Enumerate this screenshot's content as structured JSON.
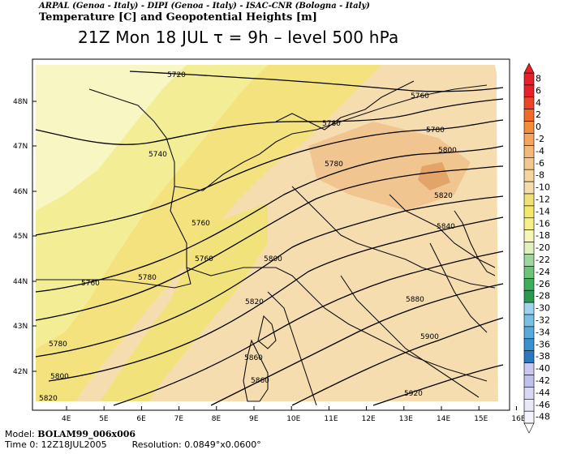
{
  "header": {
    "credits": "ARPAL (Genoa - Italy)  -  DIPI (Genoa - Italy)  -  ISAC-CNR (Bologna - Italy)",
    "title": "Temperature [C] and Geopotential Heights [m]",
    "subtitle": "21Z Mon 18 JUL   τ = 9h   –   level 500 hPa"
  },
  "footer": {
    "model_label": "Model:",
    "model_value": "BOLAM99_006x006",
    "time_label": "Time 0:",
    "time_value": "12Z18JUL2005",
    "resolution_label": "Resolution:",
    "resolution_value": "0.0849°x0.0600°"
  },
  "axes": {
    "lat_labels": [
      "48N",
      "47N",
      "46N",
      "45N",
      "44N",
      "43N",
      "42N"
    ],
    "lon_labels": [
      "4E",
      "5E",
      "6E",
      "7E",
      "8E",
      "9E",
      "10E",
      "11E",
      "12E",
      "13E",
      "14E",
      "15E",
      "16E"
    ]
  },
  "contour_labels": [
    "5720",
    "5740",
    "5760",
    "5760",
    "5760",
    "5760",
    "5780",
    "5780",
    "5780",
    "5780",
    "5780",
    "5800",
    "5800",
    "5800",
    "5820",
    "5820",
    "5820",
    "5840",
    "5860",
    "5860",
    "5880",
    "5900",
    "5920"
  ],
  "colorbar": {
    "labels": [
      "8",
      "6",
      "4",
      "2",
      "0",
      "-2",
      "-4",
      "-6",
      "-8",
      "-10",
      "-12",
      "-14",
      "-16",
      "-18",
      "-20",
      "-22",
      "-24",
      "-26",
      "-28",
      "-30",
      "-32",
      "-34",
      "-36",
      "-38",
      "-40",
      "-42",
      "-44",
      "-46",
      "-48"
    ],
    "colors": [
      "#e8202a",
      "#e8202a",
      "#ee4426",
      "#f06a2a",
      "#f58c3a",
      "#f6a560",
      "#f4b878",
      "#f2c890",
      "#f7d59f",
      "#f6dcaa",
      "#f1e07a",
      "#f2e86a",
      "#f5f08a",
      "#f7f6b8",
      "#e2f0c0",
      "#9ed6a0",
      "#6dc37a",
      "#3fae5a",
      "#2a9a4e",
      "#9dd3ee",
      "#78c0e6",
      "#58aadc",
      "#3a90d0",
      "#2a78c0",
      "#c8c8f0",
      "#c0c0ec",
      "#d8d8f4",
      "#e8e8f8",
      "#f4f4fc"
    ]
  }
}
